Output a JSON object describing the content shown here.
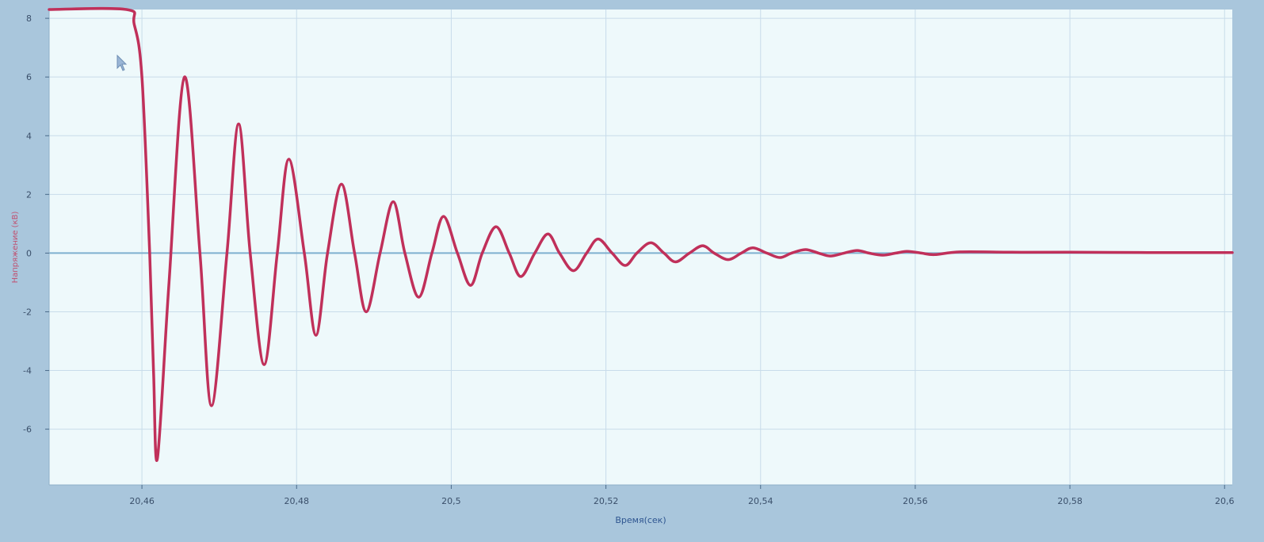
{
  "chart_data": {
    "type": "line",
    "title": "",
    "xlabel": "Время(сек)",
    "ylabel": "Напряжение (кВ)",
    "xlim": [
      20.448,
      20.601
    ],
    "ylim": [
      -7.9,
      8.3
    ],
    "x_ticks": [
      20.46,
      20.48,
      20.5,
      20.52,
      20.54,
      20.56,
      20.58,
      20.6
    ],
    "x_tick_labels": [
      "20,46",
      "20,48",
      "20,5",
      "20,52",
      "20,54",
      "20,56",
      "20,58",
      "20,6"
    ],
    "y_ticks": [
      8,
      6,
      4,
      2,
      0,
      -2,
      -4,
      -6
    ],
    "y_tick_labels": [
      "8",
      "6",
      "4",
      "2",
      "0",
      "-2",
      "-4",
      "-6"
    ],
    "grid": true,
    "legend": "none",
    "series": [
      {
        "color": "#c0305a",
        "x": [
          20.448,
          20.458,
          20.459,
          20.46,
          20.461,
          20.4615,
          20.462,
          20.4635,
          20.4655,
          20.4675,
          20.469,
          20.471,
          20.4725,
          20.474,
          20.4758,
          20.4775,
          20.479,
          20.481,
          20.4825,
          20.484,
          20.4858,
          20.4875,
          20.489,
          20.4908,
          20.4925,
          20.494,
          20.4958,
          20.4975,
          20.499,
          20.5008,
          20.5025,
          20.504,
          20.5058,
          20.5075,
          20.509,
          20.5108,
          20.5125,
          20.514,
          20.5158,
          20.5175,
          20.519,
          20.5208,
          20.5225,
          20.524,
          20.5258,
          20.5275,
          20.529,
          20.5308,
          20.5325,
          20.534,
          20.5358,
          20.5375,
          20.539,
          20.5408,
          20.5425,
          20.544,
          20.5458,
          20.5475,
          20.549,
          20.5508,
          20.5525,
          20.554,
          20.5558,
          20.5575,
          20.559,
          20.5608,
          20.5625,
          20.5658,
          20.5725,
          20.58,
          20.59,
          20.601
        ],
        "y": [
          8.3,
          8.3,
          7.8,
          6.0,
          0.0,
          -4.0,
          -7.0,
          -1.0,
          6.0,
          0.0,
          -5.2,
          0.0,
          4.4,
          0.0,
          -3.8,
          0.0,
          3.2,
          0.0,
          -2.8,
          0.0,
          2.35,
          0.0,
          -2.0,
          0.0,
          1.75,
          0.0,
          -1.5,
          0.0,
          1.25,
          0.0,
          -1.1,
          0.0,
          0.9,
          0.0,
          -0.8,
          0.0,
          0.65,
          0.0,
          -0.6,
          0.0,
          0.48,
          0.0,
          -0.42,
          0.0,
          0.35,
          0.0,
          -0.3,
          0.0,
          0.25,
          0.0,
          -0.22,
          0.0,
          0.18,
          0.0,
          -0.15,
          0.0,
          0.12,
          0.0,
          -0.1,
          0.0,
          0.09,
          0.0,
          -0.07,
          0.0,
          0.06,
          0.0,
          -0.05,
          0.04,
          0.03,
          0.03,
          0.02,
          0.02
        ]
      }
    ]
  },
  "colors": {
    "frame": "#a9c6dc",
    "plot_background": "#eef9fb",
    "grid": "#c8dcea",
    "zero_line": "#7fb0cf",
    "curve": "#c0305a"
  },
  "icons": {
    "cursor": "mouse-pointer-icon"
  }
}
